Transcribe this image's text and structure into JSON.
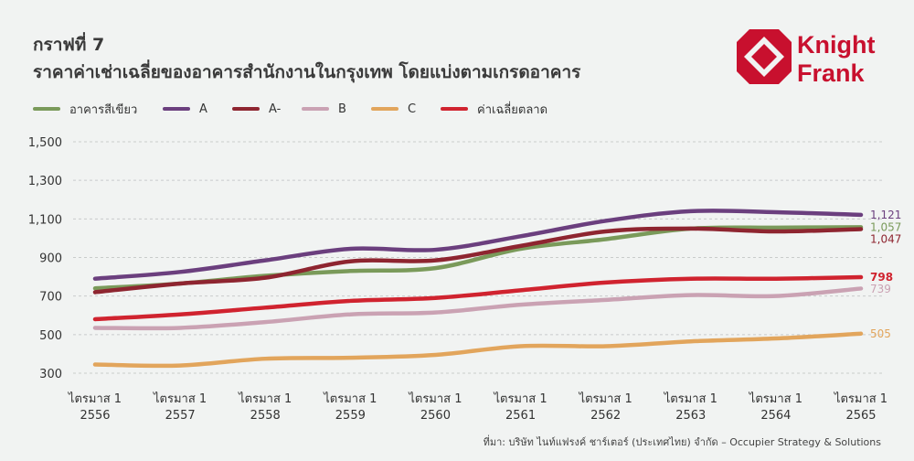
{
  "caption": "กราฟที่ 7",
  "title": "ราคาค่าเช่าเฉลี่ยของอาคารสำนักงานในกรุงเทพ โดยแบ่งตามเกรดอาคาร",
  "logo": {
    "line1": "Knight",
    "line2": "Frank",
    "color": "#c8102e"
  },
  "source": "ที่มา: บริษัท ไนท์แฟรงค์ ชาร์เตอร์ (ประเทศไทย) จำกัด – Occupier Strategy & Solutions",
  "chart_data": {
    "type": "line",
    "x": [
      "ไตรมาส 1 2556",
      "ไตรมาส 1 2557",
      "ไตรมาส 1 2558",
      "ไตรมาส 1 2559",
      "ไตรมาส 1 2560",
      "ไตรมาส 1 2561",
      "ไตรมาส 1 2562",
      "ไตรมาส 1 2563",
      "ไตรมาส 1 2564",
      "ไตรมาส 1 2565"
    ],
    "x_lines": [
      [
        "ไตรมาส 1",
        "2556"
      ],
      [
        "ไตรมาส 1",
        "2557"
      ],
      [
        "ไตรมาส 1",
        "2558"
      ],
      [
        "ไตรมาส 1",
        "2559"
      ],
      [
        "ไตรมาส 1",
        "2560"
      ],
      [
        "ไตรมาส 1",
        "2561"
      ],
      [
        "ไตรมาส 1",
        "2562"
      ],
      [
        "ไตรมาส 1",
        "2563"
      ],
      [
        "ไตรมาส 1",
        "2564"
      ],
      [
        "ไตรมาส 1",
        "2565"
      ]
    ],
    "ylim": [
      300,
      1500
    ],
    "yticks": [
      300,
      500,
      700,
      900,
      1100,
      1300,
      1500
    ],
    "ytick_labels": [
      "300",
      "500",
      "700",
      "900",
      "1,100",
      "1,300",
      "1,500"
    ],
    "grid": true,
    "legend_position": "top-left",
    "series": [
      {
        "name": "อาคารสีเขียว",
        "color": "#7a9a5a",
        "values": [
          740,
          765,
          805,
          830,
          845,
          945,
          995,
          1050,
          1055,
          1057
        ],
        "end_label": "1,057",
        "end_label_bold": false
      },
      {
        "name": "A",
        "color": "#6b3f7e",
        "values": [
          790,
          825,
          885,
          945,
          940,
          1010,
          1090,
          1140,
          1135,
          1121
        ],
        "end_label": "1,121",
        "end_label_bold": false
      },
      {
        "name": "A-",
        "color": "#8e2530",
        "values": [
          720,
          765,
          795,
          880,
          885,
          960,
          1035,
          1050,
          1035,
          1047
        ],
        "end_label": "1,047",
        "end_label_bold": false
      },
      {
        "name": "B",
        "color": "#caa2b3",
        "values": [
          535,
          535,
          565,
          605,
          615,
          655,
          680,
          705,
          700,
          739
        ],
        "end_label": "739",
        "end_label_bold": false
      },
      {
        "name": "C",
        "color": "#e2a55c",
        "values": [
          345,
          340,
          375,
          380,
          395,
          440,
          440,
          465,
          480,
          505
        ],
        "end_label": "505",
        "end_label_bold": false
      },
      {
        "name": "ค่าเฉลี่ยตลาด",
        "color": "#d0232f",
        "values": [
          580,
          605,
          640,
          675,
          690,
          730,
          770,
          790,
          790,
          798
        ],
        "end_label": "798",
        "end_label_bold": true
      }
    ]
  }
}
